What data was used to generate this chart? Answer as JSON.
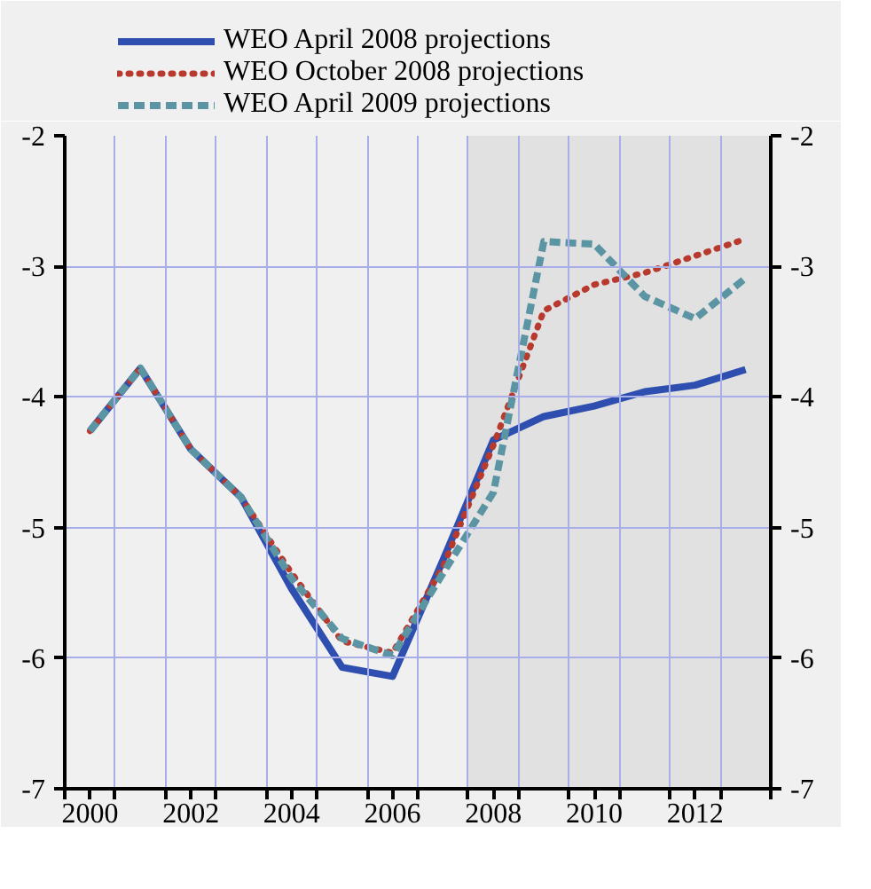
{
  "chart_data": {
    "type": "line",
    "x": [
      2000,
      2001,
      2002,
      2003,
      2004,
      2005,
      2006,
      2007,
      2008,
      2009,
      2010,
      2011,
      2012,
      2013
    ],
    "series": [
      {
        "name": "WEO April 2008 projections",
        "color": "#2e4fb0",
        "line_style": "solid",
        "values": [
          -4.26,
          -3.78,
          -4.4,
          -4.77,
          -5.47,
          -6.07,
          -6.14,
          -5.25,
          -4.33,
          -4.15,
          -4.07,
          -3.96,
          -3.91,
          -3.79
        ]
      },
      {
        "name": "WEO October 2008 projections",
        "color": "#b8392e",
        "line_style": "dotted",
        "values": [
          -4.26,
          -3.78,
          -4.4,
          -4.77,
          -5.35,
          -5.87,
          -5.96,
          -5.3,
          -4.37,
          -3.34,
          -3.14,
          -3.05,
          -2.92,
          -2.79
        ]
      },
      {
        "name": "WEO April 2009 projections",
        "color": "#5b94a2",
        "line_style": "dashed",
        "values": [
          -4.26,
          -3.78,
          -4.4,
          -4.77,
          -5.39,
          -5.85,
          -5.98,
          -5.35,
          -4.73,
          -2.81,
          -2.83,
          -3.23,
          -3.4,
          -3.09
        ]
      }
    ],
    "xlim": [
      1999.5,
      2013.5
    ],
    "xticks": [
      {
        "value": 1999.5,
        "label": null
      },
      {
        "value": 2000,
        "label": "2000"
      },
      {
        "value": 2000.5,
        "label": null
      },
      {
        "value": 2001.5,
        "label": null
      },
      {
        "value": 2002,
        "label": "2002"
      },
      {
        "value": 2002.5,
        "label": null
      },
      {
        "value": 2003.5,
        "label": null
      },
      {
        "value": 2004,
        "label": "2004"
      },
      {
        "value": 2004.5,
        "label": null
      },
      {
        "value": 2005.5,
        "label": null
      },
      {
        "value": 2006,
        "label": "2006"
      },
      {
        "value": 2006.5,
        "label": null
      },
      {
        "value": 2007.5,
        "label": null
      },
      {
        "value": 2008,
        "label": "2008"
      },
      {
        "value": 2008.5,
        "label": null
      },
      {
        "value": 2009.5,
        "label": null
      },
      {
        "value": 2010,
        "label": "2010"
      },
      {
        "value": 2010.5,
        "label": null
      },
      {
        "value": 2011.5,
        "label": null
      },
      {
        "value": 2012,
        "label": "2012"
      },
      {
        "value": 2012.5,
        "label": null
      },
      {
        "value": 2013.5,
        "label": null
      }
    ],
    "ylim": [
      -7,
      -2
    ],
    "yticks": [
      -7,
      -6,
      -5,
      -4,
      -3,
      -2
    ],
    "y2lim": [
      -7,
      -2
    ],
    "y2ticks": [
      -7,
      -6,
      -5,
      -4,
      -3,
      -2
    ],
    "bands": [
      {
        "axis": "x",
        "from": 2007.5,
        "to": 2013.5,
        "color": "#e0e1e0"
      }
    ],
    "grid": true,
    "legend": "top left",
    "marker": "none"
  }
}
